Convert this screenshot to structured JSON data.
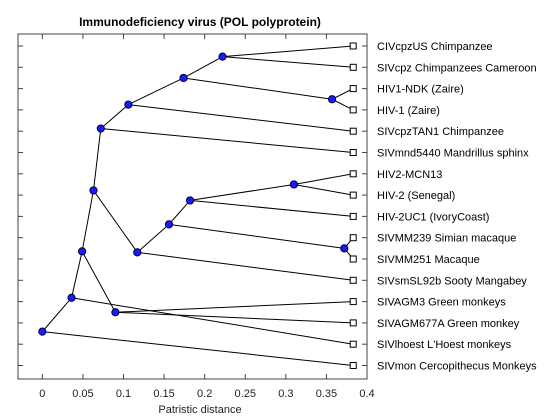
{
  "chart_data": {
    "type": "phylogenetic-tree",
    "title": "Immunodeficiency virus (POL polyprotein)",
    "xlabel": "Patristic distance",
    "xlim": [
      -0.03,
      0.4
    ],
    "xticks": [
      "0",
      "0.05",
      "0.1",
      "0.15",
      "0.2",
      "0.25",
      "0.3",
      "0.35",
      "0.4"
    ],
    "xtick_values": [
      0,
      0.05,
      0.1,
      0.15,
      0.2,
      0.25,
      0.3,
      0.35,
      0.4
    ],
    "leaf_distance": 0.383,
    "leaves": [
      "CIVcpzUS Chimpanzee",
      "SIVcpz Chimpanzees Cameroon",
      "HIV1-NDK (Zaire)",
      "HIV-1 (Zaire)",
      "SIVcpzTAN1 Chimpanzee",
      "SIVmnd5440 Mandrillus sphinx",
      "HIV2-MCN13",
      "HIV-2 (Senegal)",
      "HIV-2UC1 (IvoryCoast)",
      "SIVMM239 Simian macaque",
      "SIVMM251 Macaque",
      "SIVsmSL92b Sooty Mangabey",
      "SIVAGM3 Green monkeys",
      "SIVAGM677A Green monkey",
      "SIVlhoest L'Hoest monkeys",
      "SIVmon Cercopithecus Monkeys"
    ],
    "internal_nodes": [
      {
        "id": "n1",
        "x": 0.222,
        "children": [
          "L0",
          "L1"
        ]
      },
      {
        "id": "n2",
        "x": 0.357,
        "children": [
          "L2",
          "L3"
        ]
      },
      {
        "id": "n3",
        "x": 0.174,
        "children": [
          "n1",
          "n2"
        ]
      },
      {
        "id": "n4",
        "x": 0.106,
        "children": [
          "n3",
          "L4"
        ]
      },
      {
        "id": "n5",
        "x": 0.072,
        "children": [
          "n4",
          "L5"
        ]
      },
      {
        "id": "n6",
        "x": 0.31,
        "children": [
          "L6",
          "L7"
        ]
      },
      {
        "id": "n7",
        "x": 0.182,
        "children": [
          "n6",
          "L8"
        ]
      },
      {
        "id": "n8",
        "x": 0.372,
        "children": [
          "L9",
          "L10"
        ]
      },
      {
        "id": "n9",
        "x": 0.156,
        "children": [
          "n7",
          "n8"
        ]
      },
      {
        "id": "n10",
        "x": 0.117,
        "children": [
          "n9",
          "L11"
        ]
      },
      {
        "id": "n11",
        "x": 0.063,
        "children": [
          "n5",
          "n10"
        ]
      },
      {
        "id": "n12",
        "x": 0.09,
        "children": [
          "L12",
          "L13"
        ]
      },
      {
        "id": "n13",
        "x": 0.049,
        "children": [
          "n11",
          "n12"
        ]
      },
      {
        "id": "n14",
        "x": 0.036,
        "children": [
          "n13",
          "L14"
        ]
      },
      {
        "id": "n15",
        "x": 0.0,
        "children": [
          "n14",
          "L15"
        ]
      }
    ],
    "grid": false,
    "colors": {
      "branch": "#000000",
      "node_fill": "#1a1aff",
      "node_stroke": "#000033",
      "leaf_fill": "#ffffff",
      "axes": "#444444"
    }
  }
}
